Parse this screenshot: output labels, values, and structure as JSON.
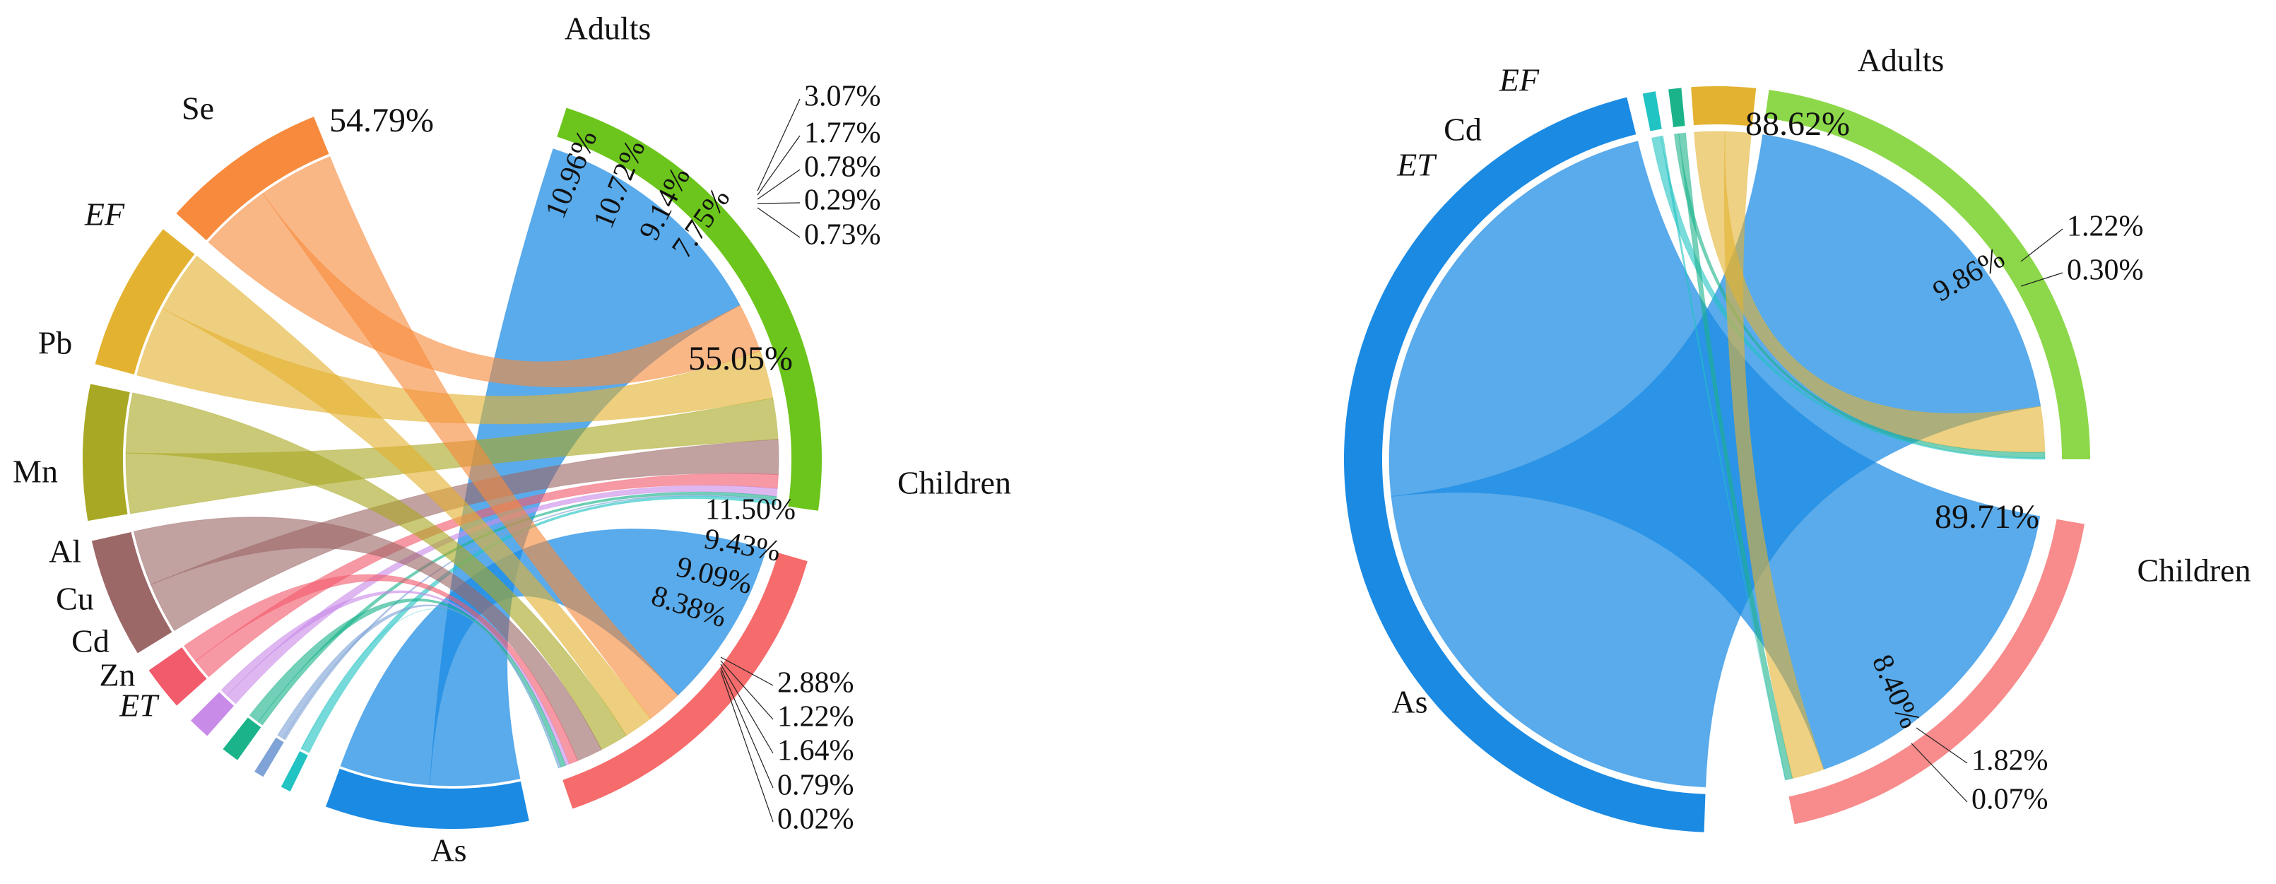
{
  "chart_data": [
    {
      "type": "chord",
      "targets": [
        {
          "name": "Adults",
          "color": "#6cc51c"
        },
        {
          "name": "Children",
          "color": "#f66b6b"
        }
      ],
      "sources": [
        {
          "name": "As",
          "color": "#1a8ae3",
          "italic": false
        },
        {
          "name": "Se",
          "color": "#f78a3c",
          "italic": false
        },
        {
          "name": "EF",
          "color": "#e3b230",
          "italic": true
        },
        {
          "name": "Pb",
          "color": "#a9a824",
          "italic": false
        },
        {
          "name": "Mn",
          "color": "#9c6767",
          "italic": false
        },
        {
          "name": "Al",
          "color": "#f25b6c",
          "italic": false
        },
        {
          "name": "Cu",
          "color": "#c98be8",
          "italic": false
        },
        {
          "name": "Cd",
          "color": "#1ab38a",
          "italic": false
        },
        {
          "name": "Zn",
          "color": "#7fa3d6",
          "italic": false
        },
        {
          "name": "ET",
          "color": "#22c3c3",
          "italic": true
        }
      ],
      "flows": {
        "Adults": {
          "As": "54.79%",
          "Se": "10.96%",
          "EF": "10.72%",
          "Pb": "9.14%",
          "Mn": "7.75%",
          "Al": "3.07%",
          "Cu": "1.77%",
          "Cd": "0.78%",
          "Zn": "0.29%",
          "ET": "0.73%"
        },
        "Children": {
          "As": "55.05%",
          "Se": "11.50%",
          "EF": "9.43%",
          "Pb": "9.09%",
          "Mn": "8.38%",
          "Al": "2.88%",
          "Cu": "1.22%",
          "Cd": "1.64%",
          "Zn": "0.79%",
          "ET": "0.02%"
        }
      },
      "values": {
        "Adults": [
          54.79,
          10.96,
          10.72,
          9.14,
          7.75,
          3.07,
          1.77,
          0.78,
          0.29,
          0.73
        ],
        "Children": [
          55.05,
          11.5,
          9.43,
          9.09,
          8.38,
          2.88,
          1.22,
          1.64,
          0.79,
          0.02
        ]
      }
    },
    {
      "type": "chord",
      "targets": [
        {
          "name": "Adults",
          "color": "#8cd84a"
        },
        {
          "name": "Children",
          "color": "#f88b8b"
        }
      ],
      "sources": [
        {
          "name": "As",
          "color": "#1a8ae3",
          "italic": false
        },
        {
          "name": "Cd",
          "color": "#1ab38a",
          "italic": false
        },
        {
          "name": "EF",
          "color": "#e3b230",
          "italic": true
        },
        {
          "name": "ET",
          "color": "#22c3c3",
          "italic": true
        }
      ],
      "flows": {
        "Adults": {
          "As": "88.62%",
          "EF": "9.86%",
          "Cd": "1.22%",
          "ET": "0.30%"
        },
        "Children": {
          "As": "89.71%",
          "EF": "8.40%",
          "Cd": "1.82%",
          "ET": "0.07%"
        }
      },
      "values": {
        "Adults": {
          "As": 88.62,
          "EF": 9.86,
          "Cd": 1.22,
          "ET": 0.3
        },
        "Children": {
          "As": 89.71,
          "EF": 8.4,
          "Cd": 1.82,
          "ET": 0.07
        }
      }
    }
  ]
}
